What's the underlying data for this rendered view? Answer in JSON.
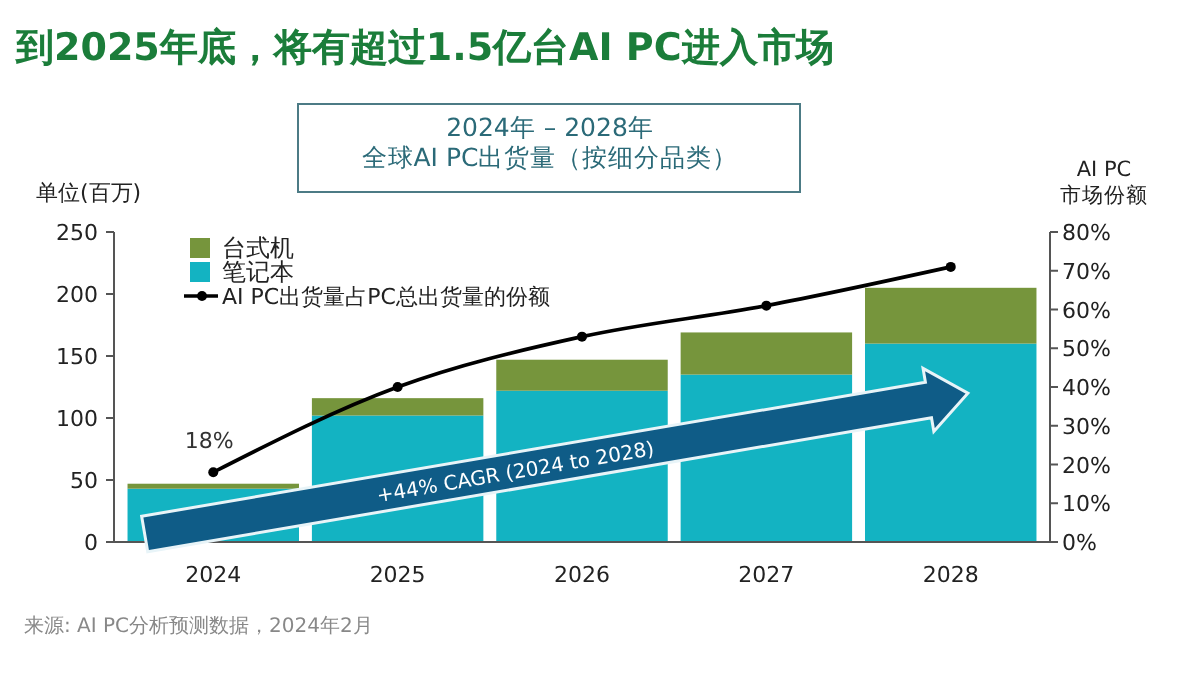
{
  "chart_data": {
    "type": "bar",
    "title": "到2025年底，将有超过1.5亿台AI PC进入市场",
    "subtitle": "2024年 – 2028年",
    "ylabel": "单位(百万)",
    "y2label": "AI PC\n市场份额",
    "categories": [
      "2024",
      "2025",
      "2026",
      "2027",
      "2028"
    ],
    "stacked": true,
    "series": [
      {
        "name": "笔记本",
        "color": "#13b3c2",
        "values": [
          43,
          102,
          122,
          135,
          160
        ]
      },
      {
        "name": "台式机",
        "color": "#76953c",
        "values": [
          4,
          14,
          25,
          34,
          45
        ]
      },
      {
        "name": "AI PC出货量占PC总出货量的份额",
        "type": "line",
        "axis": "y2",
        "color": "#000000",
        "marker": "circle",
        "values": [
          18,
          40,
          53,
          61,
          71
        ],
        "value_labels": [
          "18%",
          null,
          null,
          null,
          null
        ]
      }
    ],
    "ylim": [
      0,
      250
    ],
    "yticks": [
      0,
      50,
      100,
      150,
      200,
      250
    ],
    "y2lim": [
      0,
      80
    ],
    "y2ticks": [
      {
        "value": 0,
        "label": "0%"
      },
      {
        "value": 10,
        "label": "10%"
      },
      {
        "value": 20,
        "label": "20%"
      },
      {
        "value": 30,
        "label": "30%"
      },
      {
        "value": 40,
        "label": "40%"
      },
      {
        "value": 50,
        "label": "50%"
      },
      {
        "value": 60,
        "label": "60%"
      },
      {
        "value": 70,
        "label": "70%"
      },
      {
        "value": 80,
        "label": "80%"
      }
    ],
    "grid": false,
    "legend": "top left",
    "annotations": [
      "全球AI PC出货量（按细分品类）",
      "+44% CAGR (2024 to 2028)",
      "来源: AI PC分析预测数据，2024年2月"
    ]
  }
}
